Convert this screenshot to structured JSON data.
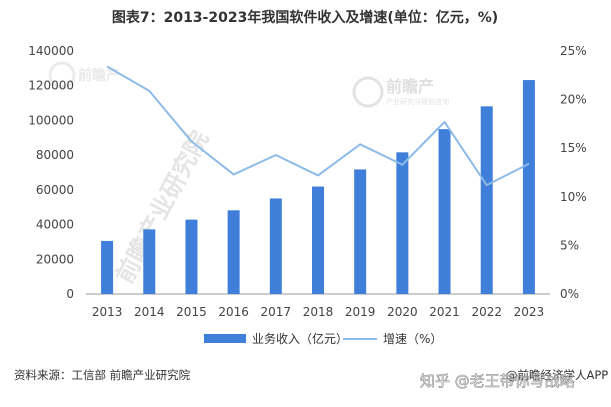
{
  "chart_data": {
    "type": "bar",
    "title": "图表7：2013-2023年我国软件收入及增速(单位：亿元，%)",
    "categories": [
      "2013",
      "2014",
      "2015",
      "2016",
      "2017",
      "2018",
      "2019",
      "2020",
      "2021",
      "2022",
      "2023"
    ],
    "series": [
      {
        "name": "业务收入（亿元）",
        "type": "bar",
        "axis": "left",
        "color": "#3f7fda",
        "values": [
          30587,
          37235,
          42848,
          48232,
          55037,
          61909,
          71768,
          81616,
          94994,
          108126,
          123258
        ]
      },
      {
        "name": "增速（%）",
        "type": "line",
        "axis": "right",
        "color": "#8dbbe8",
        "values": [
          23.4,
          20.9,
          15.7,
          12.3,
          14.3,
          12.2,
          15.4,
          13.3,
          17.7,
          11.2,
          13.4
        ]
      }
    ],
    "y_left": {
      "min": 0,
      "max": 140000,
      "ticks": [
        "0",
        "20000",
        "40000",
        "60000",
        "80000",
        "100000",
        "120000",
        "140000"
      ]
    },
    "y_right": {
      "min": 0,
      "max": 25,
      "ticks": [
        "0%",
        "5%",
        "10%",
        "15%",
        "20%",
        "25%"
      ]
    },
    "grid": false,
    "legend_position": "bottom"
  },
  "footer": {
    "source": "资料来源：工信部 前瞻产业研究院",
    "credit": "@前瞻经济学人APP"
  },
  "watermark": {
    "brand": "前瞻产",
    "tagline": "产业研究与规划咨询",
    "diagonal": "前瞻产业研究院"
  },
  "overlay": {
    "text": "知乎 @老王带你写战略"
  }
}
